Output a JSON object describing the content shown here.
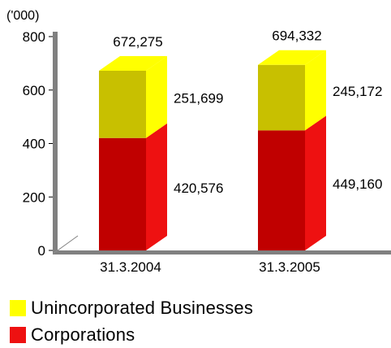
{
  "chart_data": {
    "type": "bar",
    "stacked": true,
    "three_d": true,
    "unit_label": "('000)",
    "categories": [
      "31.3.2004",
      "31.3.2005"
    ],
    "totals": [
      "672,275",
      "694,332"
    ],
    "series": [
      {
        "name": "Corporations",
        "values": [
          420576,
          449160
        ],
        "labels": [
          "420,576",
          "449,160"
        ],
        "color": "#c00000",
        "side_color": "#ee1111",
        "top_color": "#ee1111"
      },
      {
        "name": "Unincorporated Businesses",
        "values": [
          251699,
          245172
        ],
        "labels": [
          "251,699",
          "245,172"
        ],
        "color": "#c8c000",
        "side_color": "#ffff00",
        "top_color": "#ffff00"
      }
    ],
    "ylim": [
      0,
      800000
    ],
    "yticks": [
      0,
      200000,
      400000,
      600000,
      800000
    ],
    "ytick_labels": [
      "0",
      "200",
      "400",
      "600",
      "800"
    ],
    "grid": false,
    "legend": "bottom-left",
    "axis_color": "#808080"
  }
}
